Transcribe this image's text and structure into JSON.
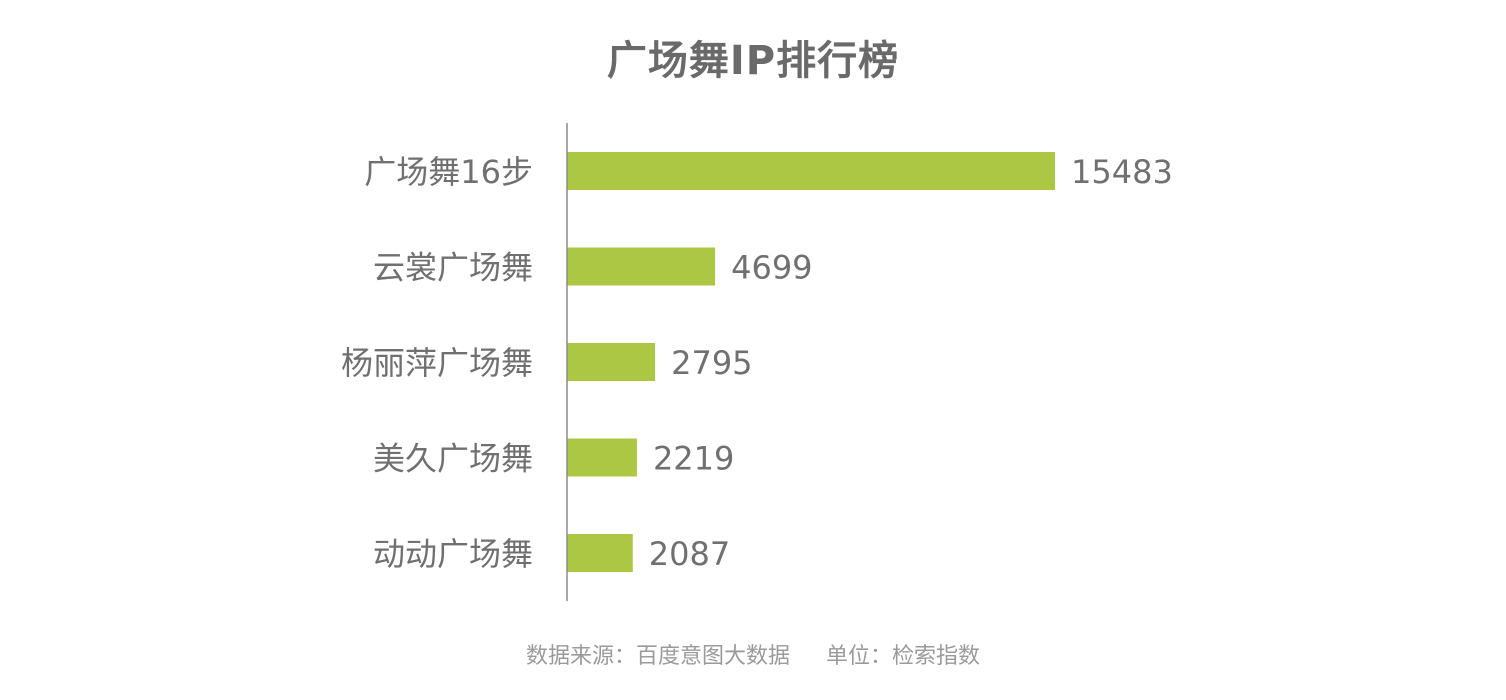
{
  "chart_data": {
    "type": "bar",
    "orientation": "horizontal",
    "title": "广场舞IP排行榜",
    "categories": [
      "广场舞16步",
      "云裳广场舞",
      "杨丽萍广场舞",
      "美久广场舞",
      "动动广场舞"
    ],
    "values": [
      15483,
      4699,
      2795,
      2219,
      2087
    ],
    "data_labels": [
      "15483",
      "4699",
      "2795",
      "2219",
      "2087"
    ],
    "xlim": [
      0,
      15483
    ],
    "grid": false,
    "legend": "none",
    "bar_color": "#acc743",
    "axis_color": "#8c8c8c",
    "label_color": "#707070"
  },
  "footer": {
    "source": "数据来源：百度意图大数据",
    "unit": "单位：检索指数"
  }
}
